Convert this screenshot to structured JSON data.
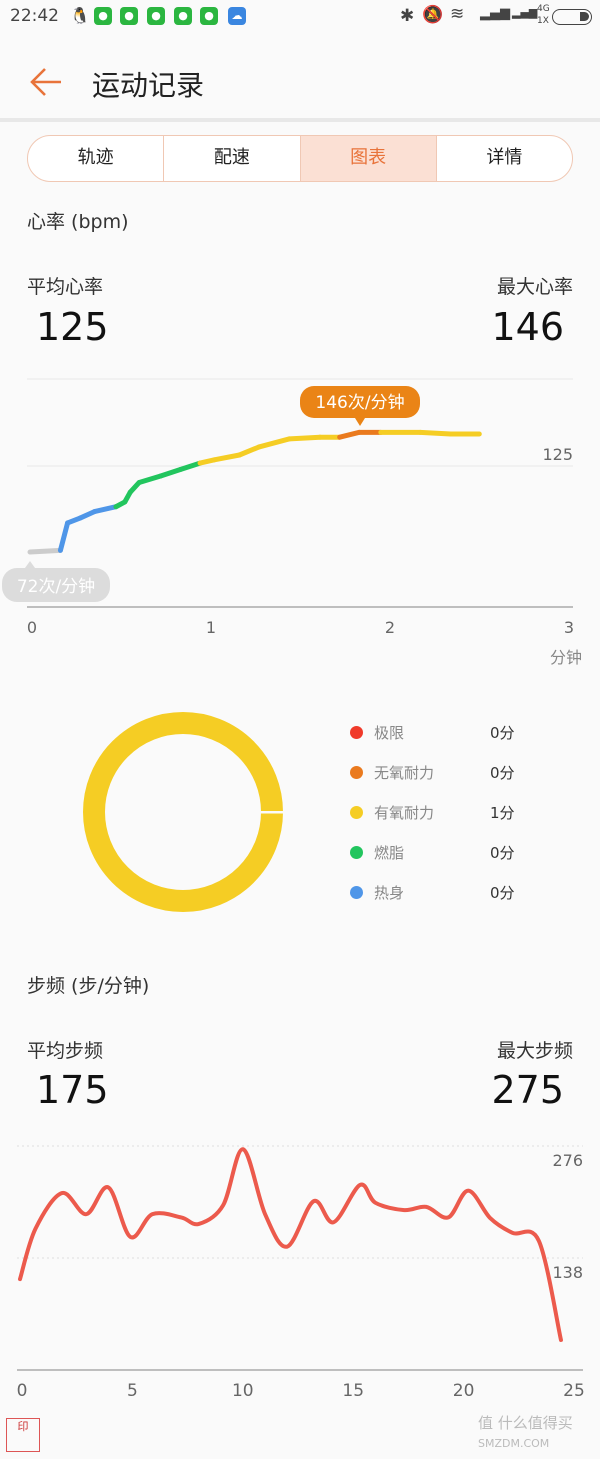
{
  "status": {
    "time": "22:42",
    "network": "4G",
    "sim": "1X",
    "icons": [
      "qq-icon",
      "wechat-icon",
      "wechat-icon",
      "wechat-icon",
      "wechat-icon",
      "wechat-icon",
      "cloud-icon",
      "bluetooth-icon",
      "mute-bell-icon",
      "wifi-icon",
      "signal-icon",
      "signal-icon",
      "battery-icon"
    ]
  },
  "header": {
    "title": "运动记录",
    "back_icon": "arrow-left-icon",
    "accent": "#e8733a"
  },
  "tabs": [
    {
      "label": "轨迹"
    },
    {
      "label": "配速"
    },
    {
      "label": "图表",
      "active": true
    },
    {
      "label": "详情"
    }
  ],
  "heart": {
    "section_title": "心率 (bpm)",
    "avg_label": "平均心率",
    "avg_value": "125",
    "max_label": "最大心率",
    "max_value": "146",
    "max_callout": "146次/分钟",
    "min_callout": "72次/分钟",
    "unit": "分钟"
  },
  "cadence": {
    "section_title": "步频 (步/分钟)",
    "avg_label": "平均步频",
    "avg_value": "175",
    "max_label": "最大步频",
    "max_value": "275"
  },
  "zones": [
    {
      "name": "极限",
      "value": "0分",
      "color": "#f03a2a"
    },
    {
      "name": "无氧耐力",
      "value": "0分",
      "color": "#ea7a1e"
    },
    {
      "name": "有氧耐力",
      "value": "1分",
      "color": "#f5cd24"
    },
    {
      "name": "燃脂",
      "value": "0分",
      "color": "#22c55e"
    },
    {
      "name": "热身",
      "value": "0分",
      "color": "#4f96e8"
    }
  ],
  "donut": {
    "zone": "有氧耐力",
    "fraction": 1.0,
    "color": "#f5cd24"
  },
  "watermark": {
    "seal": "一雅 呆濶",
    "site": "什么值得买 SMZDM.COM"
  },
  "chart_data": [
    {
      "type": "line",
      "xlabel": "分钟",
      "xlim": [
        0,
        3
      ],
      "xticks": [
        "0",
        "1",
        "2",
        "3"
      ],
      "ylim": [
        38,
        179
      ],
      "yticks": [
        "125"
      ],
      "grid": true,
      "x": [
        0,
        0.17,
        0.21,
        0.28,
        0.36,
        0.48,
        0.53,
        0.56,
        0.61,
        0.73,
        0.84,
        0.95,
        1.03,
        1.17,
        1.28,
        1.45,
        1.62,
        1.73,
        1.84,
        1.96,
        2.18,
        2.35,
        2.51
      ],
      "y": [
        72,
        73,
        90,
        93,
        97,
        100,
        103,
        109,
        115,
        119,
        123,
        127,
        129,
        132,
        137,
        142,
        143,
        143,
        146,
        146,
        146,
        145,
        145
      ],
      "zone_colors": [
        "#cccccc",
        "#cccccc",
        "#4f96e8",
        "#4f96e8",
        "#4f96e8",
        "#4f96e8",
        "#22c55e",
        "#22c55e",
        "#22c55e",
        "#22c55e",
        "#22c55e",
        "#22c55e",
        "#f5cd24",
        "#f5cd24",
        "#f5cd24",
        "#f5cd24",
        "#f5cd24",
        "#f5cd24",
        "#ea7a1e",
        "#ea7a1e",
        "#f5cd24",
        "#f5cd24",
        "#f5cd24"
      ]
    },
    {
      "type": "line",
      "xlim": [
        0,
        25
      ],
      "xticks": [
        "0",
        "5",
        "10",
        "15",
        "20",
        "25"
      ],
      "ylim": [
        0,
        276
      ],
      "yticks": [
        "276",
        "138"
      ],
      "grid": true,
      "color": "#ec5a4c",
      "x": [
        0,
        0.7,
        1.9,
        3.0,
        4.0,
        5.0,
        6.0,
        7.3,
        8.1,
        9.2,
        10.1,
        11.1,
        12.1,
        13.3,
        14.2,
        15.4,
        16.1,
        17.4,
        18.4,
        19.4,
        20.3,
        21.3,
        22.3,
        23.5,
        24.5
      ],
      "y": [
        112,
        174,
        218,
        192,
        225,
        164,
        192,
        188,
        180,
        203,
        272,
        192,
        152,
        208,
        182,
        228,
        206,
        197,
        201,
        188,
        221,
        187,
        169,
        159,
        37
      ]
    }
  ]
}
